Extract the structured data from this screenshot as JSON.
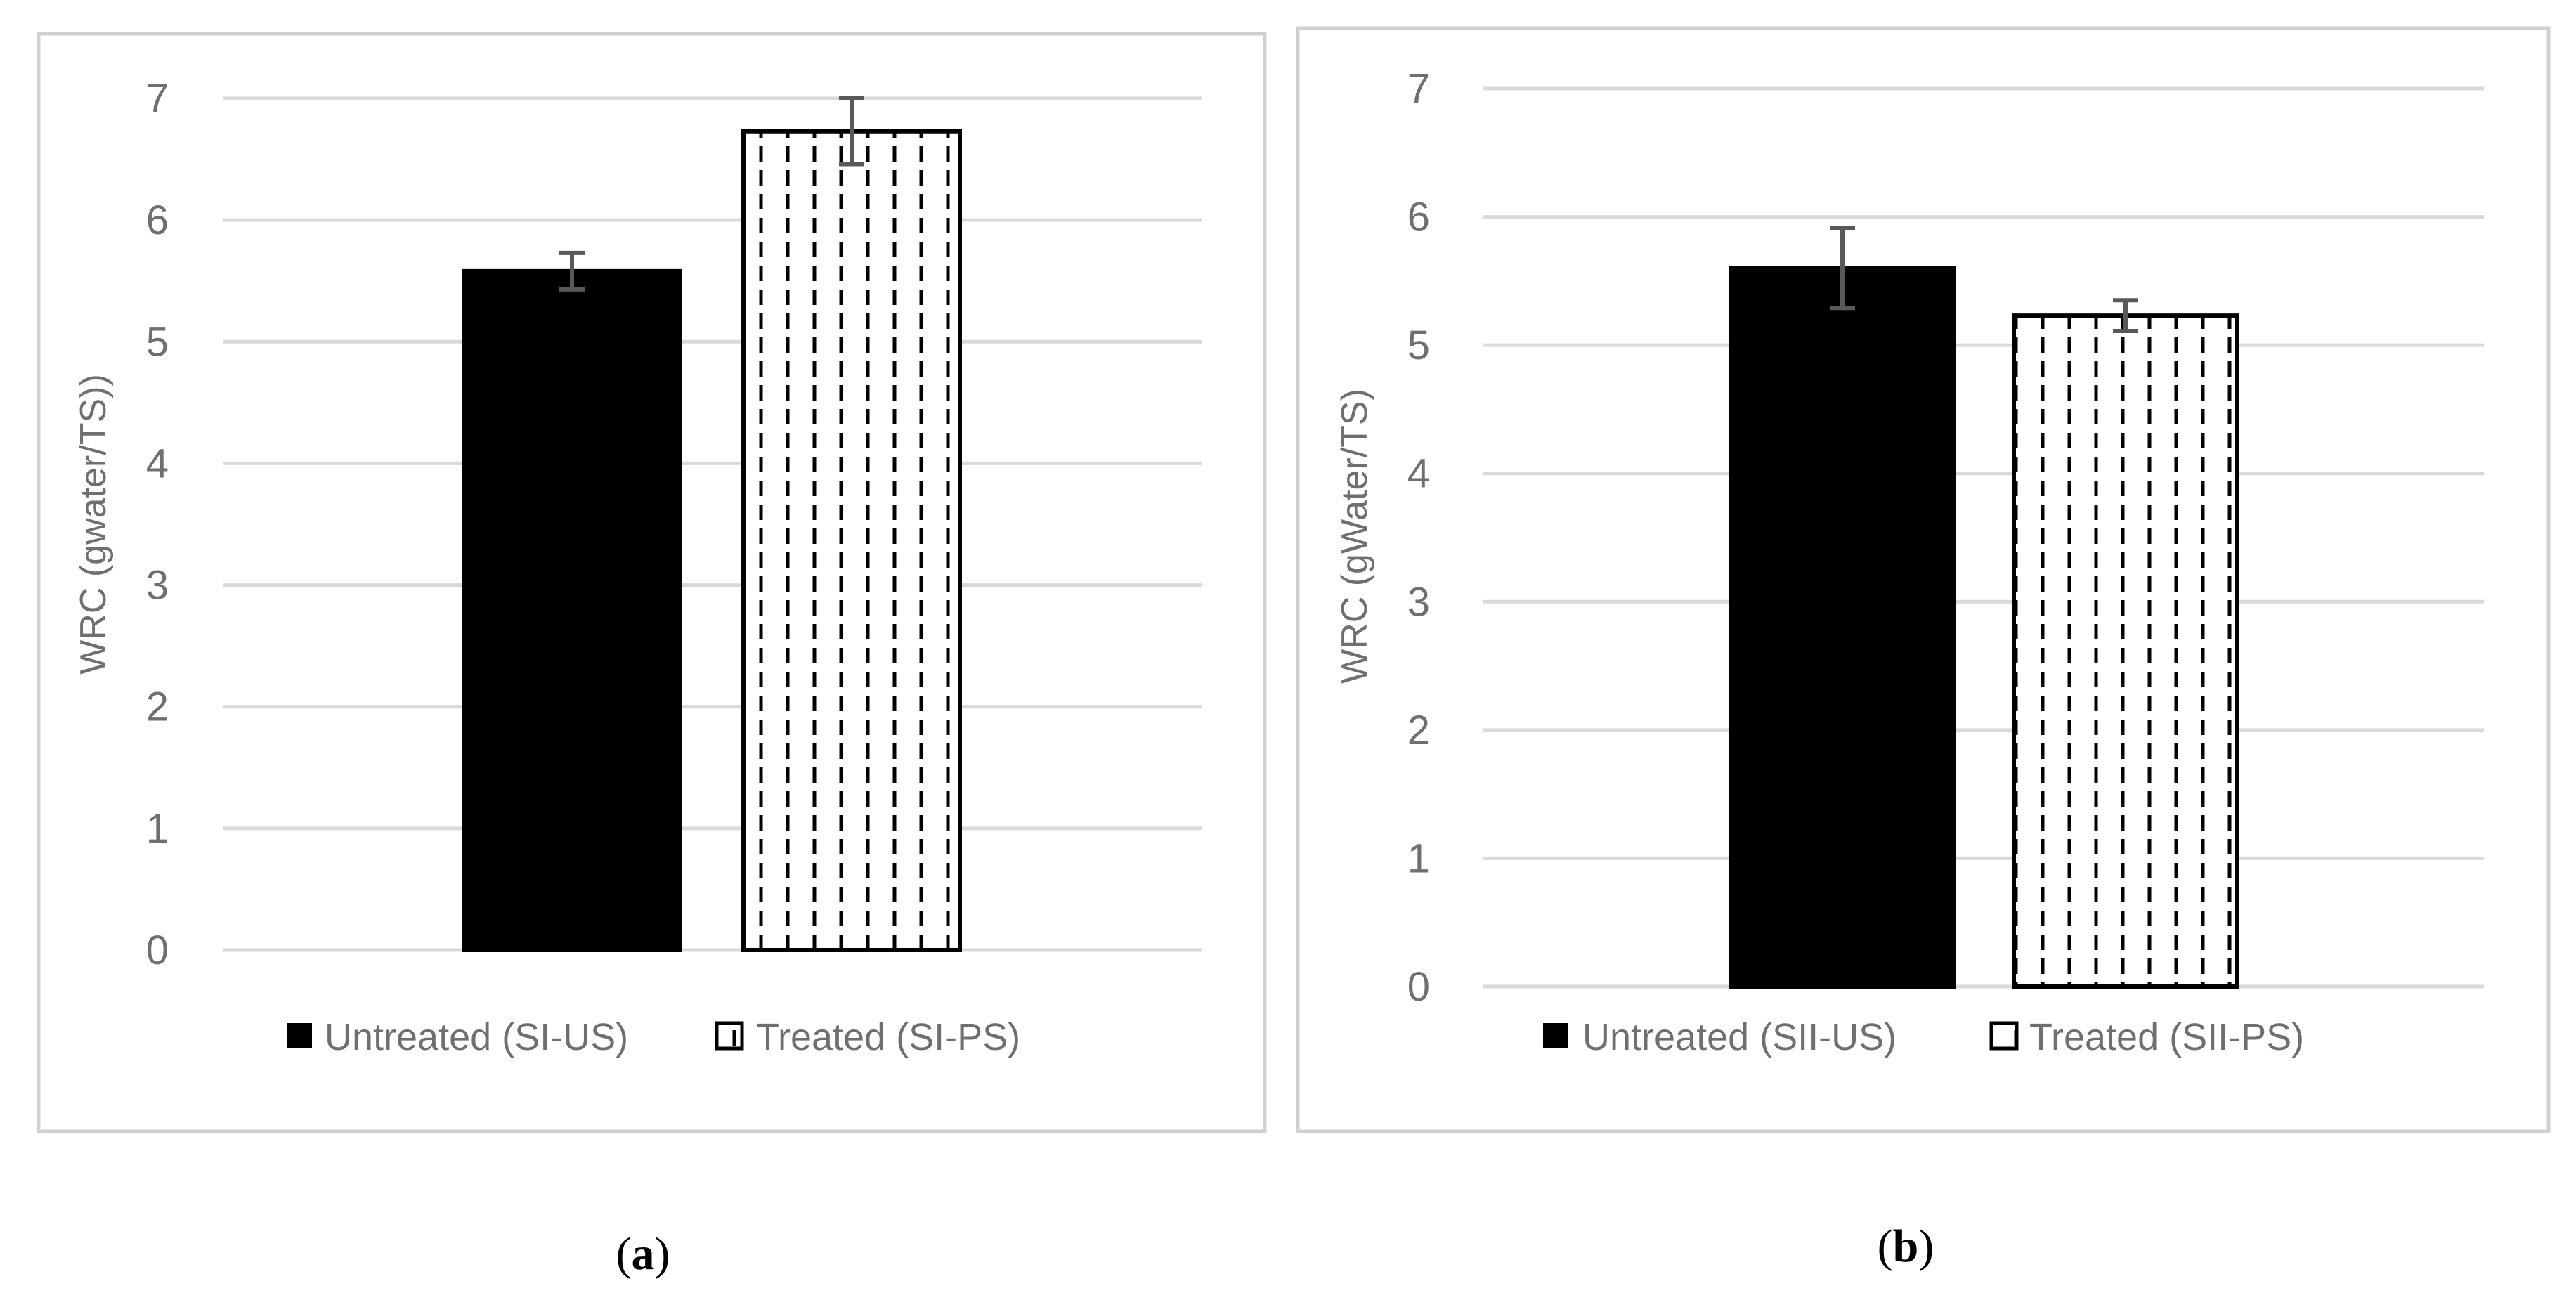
{
  "chart_data": [
    {
      "type": "bar",
      "panel_label": "a",
      "categories": [
        "Untreated (SI-US)",
        "Treated (SI-PS)"
      ],
      "values": [
        5.58,
        6.73
      ],
      "error": [
        0.15,
        0.27
      ],
      "ylabel": "WRC (gwater/TS))",
      "xlabel": "",
      "ylim": [
        0,
        7
      ],
      "yticks": [
        "0",
        "1",
        "2",
        "3",
        "4",
        "5",
        "6",
        "7"
      ],
      "grid": true,
      "legend": {
        "position": "bottom",
        "entries": [
          {
            "label": "Untreated (SI-US)",
            "style": "solid-black"
          },
          {
            "label": "Treated (SI-PS)",
            "style": "dashed-pattern"
          }
        ]
      }
    },
    {
      "type": "bar",
      "panel_label": "b",
      "categories": [
        "Untreated (SII-US)",
        "Treated (SII-PS)"
      ],
      "values": [
        5.6,
        5.23
      ],
      "error": [
        0.31,
        0.12
      ],
      "ylabel": "WRC (gWater/TS)",
      "xlabel": "",
      "ylim": [
        0,
        7
      ],
      "yticks": [
        "0",
        "1",
        "2",
        "3",
        "4",
        "5",
        "6",
        "7"
      ],
      "grid": true,
      "legend": {
        "position": "bottom",
        "entries": [
          {
            "label": "Untreated (SII-US)",
            "style": "solid-black"
          },
          {
            "label": "Treated (SII-PS)",
            "style": "dashed-pattern"
          }
        ]
      }
    }
  ],
  "captions": {
    "a": {
      "open": "(",
      "letter": "a",
      "close": ")"
    },
    "b": {
      "open": "(",
      "letter": "b",
      "close": ")"
    }
  },
  "colors": {
    "untreated_fill": "#000000",
    "treated_fill": "#ffffff",
    "treated_dash": "#000000",
    "grid": "#d9d9d9",
    "text": "#6f6f6f",
    "error_bar": "#595959"
  }
}
